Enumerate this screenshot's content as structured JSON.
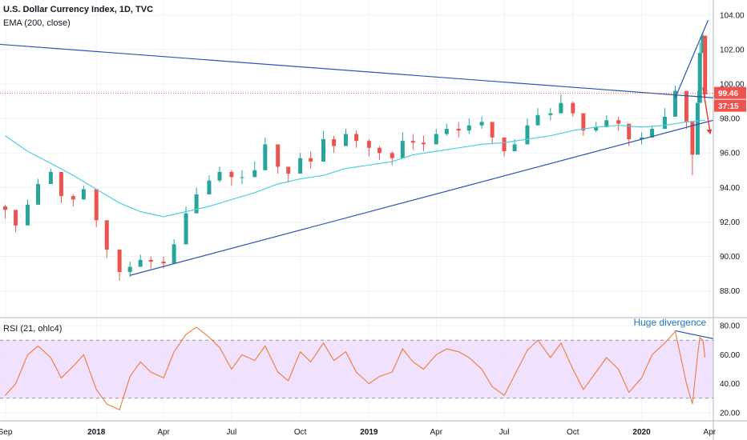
{
  "header": {
    "title": "U.S. Dollar Currency Index, 1D, TVC",
    "indicator": "EMA (200, close)",
    "rsi_label": "RSI (21, ohlc4)"
  },
  "colors": {
    "up": "#26a69a",
    "down": "#ef5350",
    "ema": "#4dd0e1",
    "trendline": "#2a56b0",
    "rsi_line": "#f07b38",
    "rsi_band": "#ecd9fb",
    "price_line": "#ef5350",
    "arrow": "#e53935"
  },
  "chart_data": [
    {
      "type": "candlestick",
      "series": [
        {
          "name": "U.S. Dollar Currency Index",
          "x": [
            "2017-09-01",
            "2017-09-15",
            "2017-10-01",
            "2017-10-15",
            "2017-11-01",
            "2017-11-15",
            "2017-12-01",
            "2017-12-15",
            "2018-01-01",
            "2018-01-15",
            "2018-02-01",
            "2018-02-15",
            "2018-03-01",
            "2018-03-15",
            "2018-04-01",
            "2018-04-15",
            "2018-05-01",
            "2018-05-15",
            "2018-06-01",
            "2018-06-15",
            "2018-07-01",
            "2018-07-15",
            "2018-08-01",
            "2018-08-15",
            "2018-09-01",
            "2018-09-15",
            "2018-10-01",
            "2018-10-15",
            "2018-11-01",
            "2018-11-15",
            "2018-12-01",
            "2018-12-15",
            "2019-01-01",
            "2019-01-15",
            "2019-02-01",
            "2019-02-15",
            "2019-03-01",
            "2019-03-15",
            "2019-04-01",
            "2019-04-15",
            "2019-05-01",
            "2019-05-15",
            "2019-06-01",
            "2019-06-15",
            "2019-07-01",
            "2019-07-15",
            "2019-08-01",
            "2019-08-15",
            "2019-09-01",
            "2019-09-15",
            "2019-10-01",
            "2019-10-15",
            "2019-11-01",
            "2019-11-15",
            "2019-12-01",
            "2019-12-15",
            "2020-01-01",
            "2020-01-15",
            "2020-02-01",
            "2020-02-15",
            "2020-03-01",
            "2020-03-09",
            "2020-03-16",
            "2020-03-19",
            "2020-03-23",
            "2020-03-26"
          ],
          "close": [
            92.7,
            91.8,
            93.0,
            94.2,
            94.9,
            93.5,
            93.3,
            93.9,
            92.1,
            90.4,
            89.1,
            89.4,
            89.8,
            89.7,
            89.6,
            90.7,
            92.5,
            93.6,
            94.4,
            94.9,
            94.6,
            94.6,
            95.0,
            96.5,
            95.2,
            94.8,
            95.7,
            95.5,
            96.8,
            96.4,
            97.1,
            96.7,
            96.3,
            96.0,
            95.7,
            96.7,
            96.6,
            96.5,
            97.1,
            97.4,
            97.3,
            97.6,
            97.8,
            96.9,
            96.1,
            96.5,
            97.6,
            98.2,
            98.3,
            98.9,
            98.3,
            97.3,
            97.5,
            97.9,
            97.7,
            96.8,
            96.9,
            97.4,
            98.1,
            99.6,
            97.8,
            95.9,
            98.9,
            101.8,
            102.8,
            99.4
          ],
          "high": [
            93.0,
            92.1,
            93.3,
            94.5,
            95.1,
            94.0,
            93.6,
            94.1,
            92.6,
            91.0,
            90.4,
            89.7,
            90.1,
            90.0,
            90.0,
            91.0,
            92.9,
            94.0,
            94.7,
            95.2,
            95.0,
            95.0,
            95.5,
            96.9,
            95.8,
            95.2,
            96.0,
            96.1,
            97.3,
            97.0,
            97.4,
            97.3,
            96.8,
            96.4,
            96.1,
            97.2,
            97.1,
            97.0,
            97.4,
            97.7,
            97.8,
            98.0,
            98.1,
            97.3,
            96.5,
            96.8,
            98.0,
            98.6,
            98.6,
            99.4,
            99.0,
            97.8,
            97.8,
            98.2,
            98.1,
            97.2,
            97.2,
            97.6,
            98.6,
            99.9,
            98.3,
            96.4,
            99.6,
            102.4,
            103.0,
            101.3
          ],
          "low": [
            92.2,
            91.4,
            92.7,
            93.8,
            94.4,
            93.1,
            92.9,
            93.4,
            91.7,
            89.9,
            88.6,
            88.8,
            89.4,
            89.3,
            89.3,
            90.1,
            92.1,
            93.1,
            94.0,
            94.3,
            94.1,
            94.2,
            94.6,
            95.9,
            94.8,
            94.3,
            95.2,
            95.1,
            96.2,
            96.0,
            96.6,
            96.3,
            95.8,
            95.6,
            95.3,
            96.3,
            96.2,
            96.1,
            96.7,
            97.0,
            96.9,
            97.1,
            97.4,
            96.5,
            95.8,
            96.1,
            97.1,
            97.8,
            97.9,
            98.5,
            98.1,
            97.0,
            97.2,
            97.6,
            97.3,
            96.4,
            96.5,
            97.0,
            97.8,
            99.2,
            97.4,
            94.7,
            97.5,
            99.8,
            101.8,
            99.2
          ]
        }
      ],
      "ema": {
        "name": "EMA (200, close)",
        "x": [
          "2017-09-01",
          "2017-10-01",
          "2017-11-01",
          "2017-12-01",
          "2018-01-01",
          "2018-02-01",
          "2018-03-01",
          "2018-04-01",
          "2018-05-01",
          "2018-06-01",
          "2018-07-01",
          "2018-08-01",
          "2018-09-01",
          "2018-10-01",
          "2018-11-01",
          "2018-12-01",
          "2019-01-01",
          "2019-02-01",
          "2019-03-01",
          "2019-04-01",
          "2019-05-01",
          "2019-06-01",
          "2019-07-01",
          "2019-08-01",
          "2019-09-01",
          "2019-10-01",
          "2019-11-01",
          "2019-12-01",
          "2020-01-01",
          "2020-02-01",
          "2020-03-01",
          "2020-03-26"
        ],
        "values": [
          97.0,
          96.1,
          95.4,
          94.7,
          93.9,
          93.1,
          92.6,
          92.3,
          92.6,
          92.9,
          93.3,
          93.7,
          94.2,
          94.5,
          94.7,
          95.1,
          95.3,
          95.5,
          95.9,
          96.1,
          96.3,
          96.5,
          96.6,
          96.8,
          97.0,
          97.3,
          97.5,
          97.6,
          97.5,
          97.6,
          97.8,
          97.9
        ]
      },
      "price_line": 99.46,
      "last_price": "99.46",
      "countdown": "37:15",
      "ylim": [
        86.5,
        104.5
      ],
      "y_ticks": [
        "104.00",
        "102.00",
        "100.00",
        "98.00",
        "96.00",
        "94.00",
        "92.00",
        "90.00",
        "88.00"
      ],
      "x_ticks": [
        "Sep",
        "2018",
        "Apr",
        "Jul",
        "Oct",
        "2019",
        "Apr",
        "Jul",
        "Oct",
        "2020",
        "Apr"
      ],
      "grid": true
    },
    {
      "type": "line",
      "series": [
        {
          "name": "RSI (21, ohlc4)",
          "x": [
            "2017-09-01",
            "2017-09-15",
            "2017-10-01",
            "2017-10-15",
            "2017-11-01",
            "2017-11-15",
            "2017-12-01",
            "2017-12-15",
            "2018-01-01",
            "2018-01-15",
            "2018-02-01",
            "2018-02-15",
            "2018-03-01",
            "2018-03-15",
            "2018-04-01",
            "2018-04-15",
            "2018-05-01",
            "2018-05-15",
            "2018-06-01",
            "2018-06-15",
            "2018-07-01",
            "2018-07-15",
            "2018-08-01",
            "2018-08-15",
            "2018-09-01",
            "2018-09-15",
            "2018-10-01",
            "2018-10-15",
            "2018-11-01",
            "2018-11-15",
            "2018-12-01",
            "2018-12-15",
            "2019-01-01",
            "2019-01-15",
            "2019-02-01",
            "2019-02-15",
            "2019-03-01",
            "2019-03-15",
            "2019-04-01",
            "2019-04-15",
            "2019-05-01",
            "2019-05-15",
            "2019-06-01",
            "2019-06-15",
            "2019-07-01",
            "2019-07-15",
            "2019-08-01",
            "2019-08-15",
            "2019-09-01",
            "2019-09-15",
            "2019-10-01",
            "2019-10-15",
            "2019-11-01",
            "2019-11-15",
            "2019-12-01",
            "2019-12-15",
            "2020-01-01",
            "2020-01-15",
            "2020-02-01",
            "2020-02-15",
            "2020-03-01",
            "2020-03-09",
            "2020-03-16",
            "2020-03-19",
            "2020-03-23",
            "2020-03-26"
          ],
          "values": [
            32,
            40,
            60,
            66,
            58,
            44,
            52,
            60,
            36,
            26,
            22,
            45,
            55,
            48,
            44,
            62,
            74,
            79,
            72,
            65,
            50,
            60,
            56,
            66,
            48,
            42,
            62,
            55,
            68,
            56,
            62,
            48,
            40,
            45,
            48,
            64,
            55,
            50,
            60,
            64,
            62,
            58,
            50,
            38,
            32,
            46,
            63,
            70,
            58,
            68,
            50,
            36,
            48,
            58,
            50,
            34,
            44,
            60,
            68,
            76,
            40,
            26,
            60,
            72,
            70,
            58
          ]
        }
      ],
      "ylim": [
        15,
        85
      ],
      "bands": {
        "upper": 70,
        "lower": 30
      },
      "y_ticks": [
        "80.00",
        "60.00",
        "40.00",
        "20.00"
      ],
      "annotation": "Huge divergence"
    }
  ]
}
